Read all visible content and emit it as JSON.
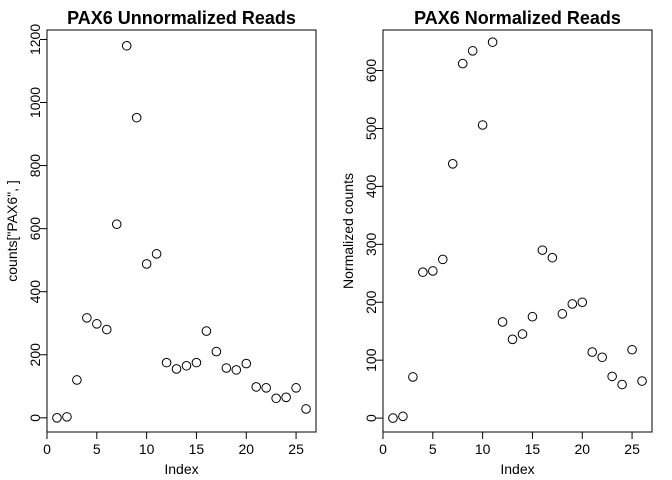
{
  "chart_data": [
    {
      "type": "scatter",
      "title": "PAX6 Unnormalized Reads",
      "xlabel": "Index",
      "ylabel": "counts[\"PAX6\", ]",
      "xlim": [
        0,
        27
      ],
      "ylim": [
        -45,
        1230
      ],
      "xticks": [
        0,
        5,
        10,
        15,
        20,
        25
      ],
      "yticks": [
        0,
        200,
        400,
        600,
        800,
        1000,
        1200
      ],
      "marker": "open-circle",
      "grid": false,
      "x": [
        1,
        2,
        3,
        4,
        5,
        6,
        7,
        8,
        9,
        10,
        11,
        12,
        13,
        14,
        15,
        16,
        17,
        18,
        19,
        20,
        21,
        22,
        23,
        24,
        25,
        26
      ],
      "y": [
        0,
        3,
        120,
        317,
        298,
        280,
        614,
        1180,
        952,
        488,
        520,
        175,
        155,
        165,
        175,
        275,
        210,
        158,
        152,
        172,
        98,
        95,
        62,
        65,
        95,
        28
      ]
    },
    {
      "type": "scatter",
      "title": "PAX6 Normalized Reads",
      "xlabel": "Index",
      "ylabel": "Normalized counts",
      "xlim": [
        0,
        27
      ],
      "ylim": [
        -24,
        670
      ],
      "xticks": [
        0,
        5,
        10,
        15,
        20,
        25
      ],
      "yticks": [
        0,
        100,
        200,
        300,
        400,
        500,
        600
      ],
      "marker": "open-circle",
      "grid": false,
      "x": [
        1,
        2,
        3,
        4,
        5,
        6,
        7,
        8,
        9,
        10,
        11,
        12,
        13,
        14,
        15,
        16,
        17,
        18,
        19,
        20,
        21,
        22,
        23,
        24,
        25,
        26
      ],
      "y": [
        0,
        3,
        71,
        252,
        254,
        274,
        439,
        612,
        634,
        506,
        649,
        166,
        136,
        145,
        175,
        290,
        277,
        180,
        197,
        200,
        114,
        105,
        72,
        58,
        118,
        64
      ]
    }
  ]
}
